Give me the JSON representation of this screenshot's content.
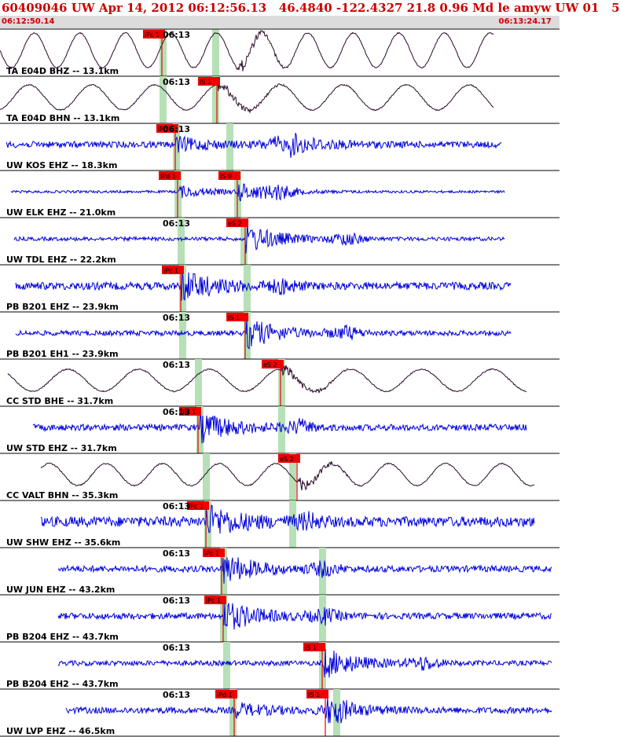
{
  "header": {
    "title": "60409046 UW Apr 14, 2012 06:12:56.13   46.4840 -122.4327 21.8 0.96 Md le amyw UW 01   5",
    "start_time": "06:12:50.14",
    "end_time": "06:13:24.17"
  },
  "colors": {
    "header_text": "#cc0000",
    "broadband_trace": "#2a0a2a",
    "short_period_trace": "#0000dd",
    "pick_flag": "#ee0000",
    "theoretical_window": "#b6e0b6",
    "divider": "#000000"
  },
  "chart_data": {
    "type": "seismogram",
    "time_window": [
      "06:12:50.14",
      "06:13:24.17"
    ],
    "minute_marker_label": "06:13",
    "traces": [
      {
        "label": "TA E04D BHZ -- 13.1km",
        "kind": "broadband",
        "picks": [
          {
            "label": "iPc 1",
            "phase": "P"
          }
        ]
      },
      {
        "label": "TA E04D BHN -- 13.1km",
        "kind": "broadband",
        "picks": [
          {
            "label": "iS 1",
            "phase": "S"
          }
        ]
      },
      {
        "label": "UW KOS EHZ -- 18.3km",
        "kind": "short-period",
        "picks": [
          {
            "label": "iPc 1",
            "phase": "P"
          }
        ]
      },
      {
        "label": "UW ELK EHZ -- 21.0km",
        "kind": "short-period",
        "picks": [
          {
            "label": "iPd 1",
            "phase": "P"
          },
          {
            "label": "iS 0",
            "phase": "S"
          }
        ]
      },
      {
        "label": "UW TDL EHZ -- 22.2km",
        "kind": "short-period",
        "picks": [
          {
            "label": "eS 2",
            "phase": "S"
          }
        ]
      },
      {
        "label": "PB B201 EHZ -- 23.9km",
        "kind": "short-period",
        "picks": [
          {
            "label": "iPc 1",
            "phase": "P"
          }
        ]
      },
      {
        "label": "PB B201 EH1 -- 23.9km",
        "kind": "short-period",
        "picks": [
          {
            "label": "iS 1",
            "phase": "S"
          }
        ]
      },
      {
        "label": "CC STD BHE -- 31.7km",
        "kind": "broadband",
        "picks": [
          {
            "label": "eS 2",
            "phase": "S"
          }
        ]
      },
      {
        "label": "UW STD EHZ -- 31.7km",
        "kind": "short-period",
        "picks": [
          {
            "label": "iPc 1",
            "phase": "P"
          }
        ]
      },
      {
        "label": "CC VALT BHN -- 35.3km",
        "kind": "broadband",
        "picks": [
          {
            "label": "eS 2",
            "phase": "S"
          }
        ]
      },
      {
        "label": "UW SHW EHZ -- 35.6km",
        "kind": "short-period",
        "picks": [
          {
            "label": "iPc 1",
            "phase": "P"
          }
        ]
      },
      {
        "label": "UW JUN EHZ -- 43.2km",
        "kind": "short-period",
        "picks": [
          {
            "label": "iPc 1",
            "phase": "P"
          }
        ]
      },
      {
        "label": "PB B204 EHZ -- 43.7km",
        "kind": "short-period",
        "picks": [
          {
            "label": "iPc 1",
            "phase": "P"
          }
        ]
      },
      {
        "label": "PB B204 EH2 -- 43.7km",
        "kind": "short-period",
        "picks": [
          {
            "label": "iS 1",
            "phase": "S"
          }
        ]
      },
      {
        "label": "UW LVP EHZ -- 46.5km",
        "kind": "short-period",
        "picks": [
          {
            "label": "iPd 1",
            "phase": "P"
          },
          {
            "label": "iS 1",
            "phase": "S"
          }
        ]
      }
    ]
  }
}
